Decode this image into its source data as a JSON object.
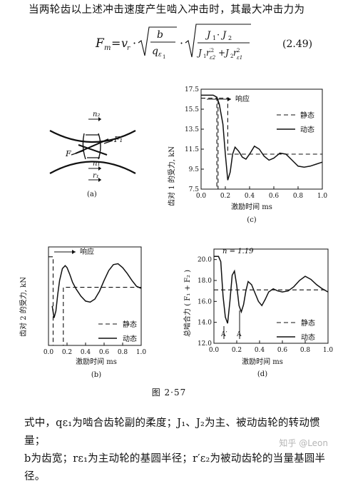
{
  "intro_text": "当两轮齿以上述冲击速度产生啮入冲击时，其最大冲击力为",
  "equation_number": "(2.49)",
  "figure_caption": "图 2·57",
  "bottom_text_line1": "式中，qε₁为啮合齿轮副的柔度；J₁、J₂为主、被动齿轮的转动惯量；",
  "bottom_text_line2": "b为齿宽；rε₁为主动轮的基圆半径；r′ε₂为被动齿轮的当量基圆半",
  "bottom_text_line3": "径。",
  "watermark": "知乎 @Leon",
  "panel_a": {
    "label": "(a)",
    "labels": [
      "n₂",
      "F",
      "F₁",
      "n₁",
      "r₁"
    ]
  },
  "chart_data": [
    {
      "type": "line",
      "panel_label": "(c)",
      "ylabel": "齿对 1 的受力, kN",
      "xlabel": "激励时间 ms",
      "x_ticks": [
        "0.0",
        "0.2",
        "0.4",
        "0.6",
        "0.8",
        "1.0"
      ],
      "y_ticks": [
        "7.5",
        "9.5",
        "11.5",
        "13.5",
        "15.5",
        "17.5"
      ],
      "xlim": [
        0,
        1.0
      ],
      "ylim": [
        7.5,
        17.5
      ],
      "annotation": "响应",
      "legend": [
        "静态",
        "动态"
      ],
      "series": [
        {
          "name": "静态",
          "x": [
            0,
            0.13,
            0.13,
            0.14,
            0.14,
            0.22,
            0.22,
            1.0
          ],
          "y": [
            16.6,
            16.6,
            7.5,
            7.5,
            16.6,
            16.6,
            11.0,
            11.0
          ]
        },
        {
          "name": "动态",
          "x": [
            0.0,
            0.1,
            0.13,
            0.15,
            0.18,
            0.2,
            0.22,
            0.24,
            0.26,
            0.28,
            0.31,
            0.34,
            0.37,
            0.4,
            0.44,
            0.48,
            0.52,
            0.56,
            0.6,
            0.65,
            0.7,
            0.75,
            0.8,
            0.85,
            0.9,
            0.95,
            1.0
          ],
          "y": [
            16.9,
            16.9,
            16.7,
            16.0,
            14.0,
            11.0,
            8.4,
            9.2,
            11.0,
            11.7,
            11.3,
            10.7,
            10.5,
            11.0,
            11.8,
            11.5,
            10.8,
            10.4,
            10.6,
            11.1,
            11.0,
            10.4,
            9.8,
            9.7,
            9.8,
            10.0,
            10.2
          ]
        }
      ]
    },
    {
      "type": "line",
      "panel_label": "(b)",
      "ylabel": "齿对 2 的受力, kN",
      "xlabel": "激励时间 ms",
      "x_ticks": [
        "0.0",
        "0.2",
        "0.4",
        "0.6",
        "0.8",
        "1.0"
      ],
      "xlim": [
        0,
        1.0
      ],
      "ylim": [
        0,
        100
      ],
      "annotation": "响应",
      "legend": [
        "静态",
        "动态"
      ],
      "series": [
        {
          "name": "静态",
          "x": [
            0,
            0.05,
            0.05,
            0.16,
            0.16,
            1.0
          ],
          "y": [
            90,
            90,
            0,
            0,
            59,
            59
          ]
        },
        {
          "name": "动态",
          "x": [
            0.04,
            0.06,
            0.08,
            0.1,
            0.12,
            0.15,
            0.18,
            0.2,
            0.23,
            0.26,
            0.3,
            0.35,
            0.4,
            0.45,
            0.5,
            0.55,
            0.6,
            0.65,
            0.7,
            0.75,
            0.8,
            0.85,
            0.9,
            0.95,
            1.0
          ],
          "y": [
            40,
            28,
            35,
            52,
            66,
            78,
            81,
            79,
            72,
            64,
            57,
            50,
            45,
            44,
            47,
            55,
            66,
            76,
            82,
            83,
            79,
            73,
            66,
            60,
            58
          ]
        }
      ]
    },
    {
      "type": "line",
      "panel_label": "(d)",
      "ylabel": "总啮合力 ( F₁ + F₂ )",
      "xlabel": "激励时间 ms",
      "x_ticks": [
        "0.0",
        "0.2",
        "0.4",
        "0.6",
        "0.8",
        "1.0"
      ],
      "y_ticks": [
        "12.0",
        "14.0",
        "16.0",
        "18.0",
        "20.0"
      ],
      "xlim": [
        0,
        1.0
      ],
      "ylim": [
        12.0,
        21.0
      ],
      "annotation": "n = 1.19",
      "markers": [
        "A′",
        "A"
      ],
      "legend": [
        "静态",
        "动态"
      ],
      "series": [
        {
          "name": "静态",
          "x": [
            0,
            1.0
          ],
          "y": [
            17.1,
            17.1
          ]
        },
        {
          "name": "动态",
          "x": [
            0.0,
            0.04,
            0.06,
            0.08,
            0.1,
            0.12,
            0.14,
            0.16,
            0.18,
            0.2,
            0.22,
            0.24,
            0.26,
            0.28,
            0.3,
            0.33,
            0.36,
            0.39,
            0.42,
            0.45,
            0.48,
            0.52,
            0.56,
            0.6,
            0.65,
            0.7,
            0.75,
            0.8,
            0.85,
            0.9,
            0.95,
            1.0
          ],
          "y": [
            20.3,
            20.3,
            19.8,
            16.5,
            14.5,
            13.9,
            16.0,
            18.5,
            18.9,
            17.5,
            15.6,
            15.0,
            15.7,
            17.0,
            17.9,
            17.6,
            16.8,
            16.0,
            15.6,
            16.2,
            16.9,
            17.2,
            17.0,
            16.9,
            17.0,
            17.4,
            18.0,
            18.4,
            18.1,
            17.6,
            17.2,
            16.9
          ]
        }
      ]
    }
  ]
}
